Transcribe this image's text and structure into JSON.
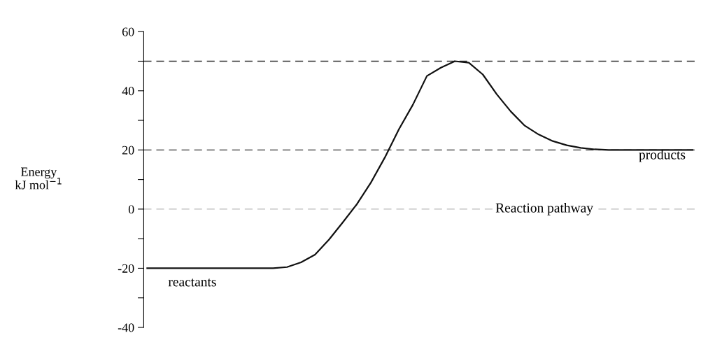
{
  "chart_data": {
    "type": "line",
    "ylabel": "Energy\nkJ mol$^{−1}$",
    "xlabel": "Reaction pathway",
    "categories": [
      null,
      null,
      null,
      null,
      null,
      null,
      null,
      null,
      null,
      null,
      null,
      null,
      null,
      null,
      null,
      null,
      null,
      null,
      null,
      null,
      null,
      null,
      null,
      null,
      null,
      null,
      null,
      null,
      null,
      null,
      null,
      null,
      null,
      null,
      null,
      null,
      null,
      null,
      null,
      null
    ],
    "series": [
      {
        "color": "#111111",
        "values": [
          -20,
          -20,
          -20,
          -20,
          -20,
          -20,
          -20,
          -20,
          -20,
          -20,
          -19.6,
          -18,
          -15.4,
          -10.3,
          -4.4,
          1.7,
          9,
          17.5,
          27,
          35.3,
          45,
          47.8,
          50,
          49.5,
          45.5,
          38.8,
          33,
          28.2,
          25.2,
          23,
          21.6,
          20.7,
          20.2,
          20,
          20,
          20,
          20,
          20,
          20,
          20
        ]
      }
    ],
    "ylim": [
      -40,
      60
    ],
    "yticks": [
      -40,
      {
        "value": -30,
        "label": null
      },
      -20,
      {
        "value": -10,
        "label": null
      },
      0,
      {
        "value": 10,
        "label": null
      },
      20,
      {
        "value": 30,
        "label": null
      },
      40,
      {
        "value": 50,
        "label": null
      },
      60
    ],
    "ref_lines": [
      {
        "axis": "y",
        "value": 50,
        "color": "#333333",
        "line_style": "dashed"
      },
      {
        "axis": "y",
        "value": 20,
        "color": "#333333",
        "line_style": "dashed"
      },
      {
        "axis": "y",
        "value": 0,
        "color": "#bbbbbb",
        "line_style": "dashed"
      }
    ],
    "annotations": [
      "reactants",
      "products"
    ],
    "tick_labels": "y",
    "grid": false,
    "legend": false,
    "marker": "none",
    "line_style": "solid"
  }
}
